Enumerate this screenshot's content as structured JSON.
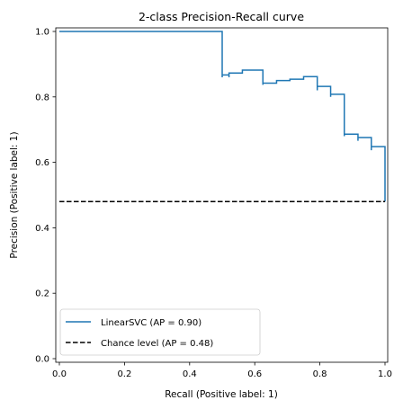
{
  "chart_data": {
    "type": "line",
    "title": "2-class Precision-Recall curve",
    "xlabel": "Recall (Positive label: 1)",
    "ylabel": "Precision (Positive label: 1)",
    "xlim": [
      0.0,
      1.0
    ],
    "ylim": [
      0.0,
      1.0
    ],
    "xticks": [
      "0.0",
      "0.2",
      "0.4",
      "0.6",
      "0.8",
      "1.0"
    ],
    "yticks": [
      "0.0",
      "0.2",
      "0.4",
      "0.6",
      "0.8",
      "1.0"
    ],
    "grid": false,
    "legend_position": "lower-left",
    "series": [
      {
        "name": "LinearSVC (AP = 0.90)",
        "color": "#1f77b4",
        "style": "step",
        "points": [
          [
            0.0,
            1.0
          ],
          [
            0.5,
            1.0
          ],
          [
            0.5,
            0.86
          ],
          [
            0.5,
            0.867
          ],
          [
            0.521,
            0.867
          ],
          [
            0.521,
            0.86
          ],
          [
            0.521,
            0.873
          ],
          [
            0.562,
            0.873
          ],
          [
            0.562,
            0.882
          ],
          [
            0.604,
            0.882
          ],
          [
            0.625,
            0.882
          ],
          [
            0.625,
            0.837
          ],
          [
            0.625,
            0.842
          ],
          [
            0.667,
            0.842
          ],
          [
            0.667,
            0.85
          ],
          [
            0.708,
            0.85
          ],
          [
            0.708,
            0.854
          ],
          [
            0.75,
            0.854
          ],
          [
            0.75,
            0.862
          ],
          [
            0.792,
            0.862
          ],
          [
            0.792,
            0.82
          ],
          [
            0.792,
            0.832
          ],
          [
            0.833,
            0.832
          ],
          [
            0.833,
            0.8
          ],
          [
            0.833,
            0.808
          ],
          [
            0.875,
            0.808
          ],
          [
            0.875,
            0.68
          ],
          [
            0.875,
            0.686
          ],
          [
            0.917,
            0.686
          ],
          [
            0.917,
            0.666
          ],
          [
            0.917,
            0.676
          ],
          [
            0.958,
            0.676
          ],
          [
            0.958,
            0.637
          ],
          [
            0.958,
            0.648
          ],
          [
            1.0,
            0.648
          ],
          [
            1.0,
            0.48
          ]
        ]
      },
      {
        "name": "Chance level (AP = 0.48)",
        "color": "#000000",
        "style": "dashed",
        "points": [
          [
            0.0,
            0.48
          ],
          [
            1.0,
            0.48
          ]
        ]
      }
    ]
  }
}
